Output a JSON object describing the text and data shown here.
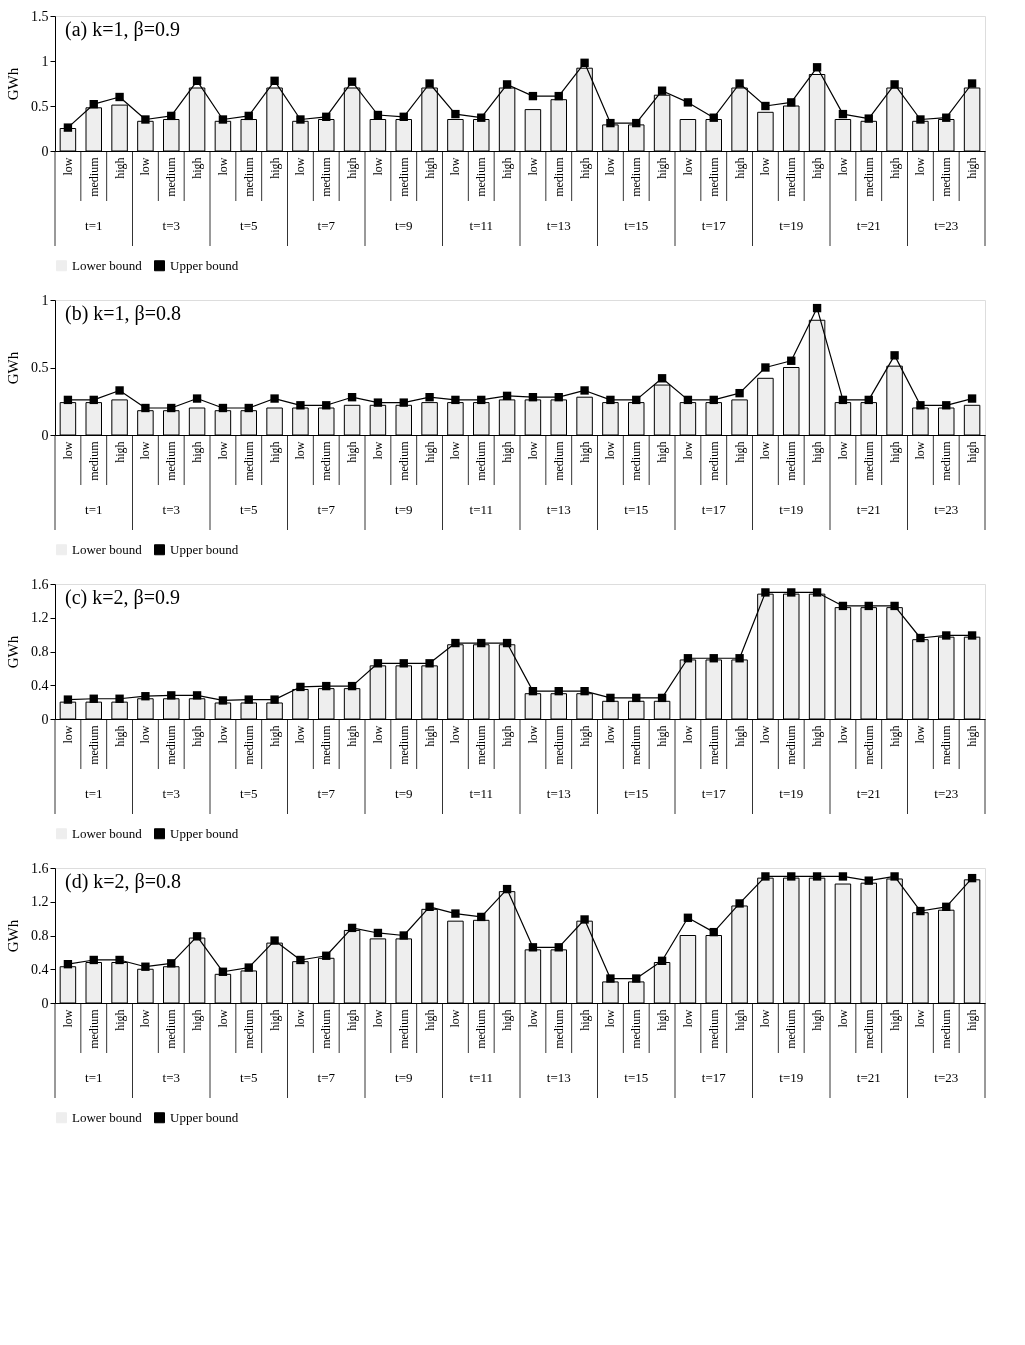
{
  "chart_data": [
    {
      "type": "bar",
      "title": "(a) k=1, β=0.9",
      "ylabel": "GWh",
      "categories": [
        "low",
        "medium",
        "high",
        "low",
        "medium",
        "high",
        "low",
        "medium",
        "high",
        "low",
        "medium",
        "high",
        "low",
        "medium",
        "high",
        "low",
        "medium",
        "high",
        "low",
        "medium",
        "high",
        "low",
        "medium",
        "high",
        "low",
        "medium",
        "high",
        "low",
        "medium",
        "high",
        "low",
        "medium",
        "high",
        "low",
        "medium",
        "high"
      ],
      "annotations": [
        "t=1",
        "t=3",
        "t=5",
        "t=7",
        "t=9",
        "t=11",
        "t=13",
        "t=15",
        "t=17",
        "t=19",
        "t=21",
        "t=23"
      ],
      "series": [
        {
          "name": "Lower bound",
          "type": "bar",
          "color": "#eeeeee",
          "values": [
            0.25,
            0.48,
            0.51,
            0.33,
            0.35,
            0.7,
            0.33,
            0.35,
            0.7,
            0.33,
            0.35,
            0.7,
            0.35,
            0.35,
            0.7,
            0.35,
            0.35,
            0.7,
            0.46,
            0.57,
            0.92,
            0.29,
            0.29,
            0.62,
            0.35,
            0.35,
            0.7,
            0.43,
            0.5,
            0.85,
            0.35,
            0.33,
            0.7,
            0.33,
            0.35,
            0.7
          ]
        },
        {
          "name": "Upper bound",
          "type": "line",
          "color": "#000000",
          "values": [
            0.26,
            0.52,
            0.6,
            0.35,
            0.39,
            0.78,
            0.35,
            0.39,
            0.78,
            0.35,
            0.38,
            0.77,
            0.4,
            0.38,
            0.75,
            0.41,
            0.37,
            0.74,
            0.61,
            0.61,
            0.98,
            0.31,
            0.31,
            0.67,
            0.54,
            0.37,
            0.75,
            0.5,
            0.54,
            0.93,
            0.41,
            0.36,
            0.74,
            0.35,
            0.37,
            0.75
          ]
        }
      ],
      "ylim": [
        0,
        1.5
      ],
      "yticks": [
        0,
        0.5,
        1,
        1.5
      ],
      "legend": "bottom",
      "marker": "square",
      "grid": false
    },
    {
      "type": "bar",
      "title": "(b) k=1, β=0.8",
      "ylabel": "GWh",
      "categories": [
        "low",
        "medium",
        "high",
        "low",
        "medium",
        "high",
        "low",
        "medium",
        "high",
        "low",
        "medium",
        "high",
        "low",
        "medium",
        "high",
        "low",
        "medium",
        "high",
        "low",
        "medium",
        "high",
        "low",
        "medium",
        "high",
        "low",
        "medium",
        "high",
        "low",
        "medium",
        "high",
        "low",
        "medium",
        "high",
        "low",
        "medium",
        "high"
      ],
      "annotations": [
        "t=1",
        "t=3",
        "t=5",
        "t=7",
        "t=9",
        "t=11",
        "t=13",
        "t=15",
        "t=17",
        "t=19",
        "t=21",
        "t=23"
      ],
      "series": [
        {
          "name": "Lower bound",
          "type": "bar",
          "color": "#eeeeee",
          "values": [
            0.24,
            0.24,
            0.26,
            0.18,
            0.18,
            0.2,
            0.18,
            0.18,
            0.2,
            0.2,
            0.2,
            0.22,
            0.22,
            0.22,
            0.24,
            0.24,
            0.24,
            0.26,
            0.26,
            0.26,
            0.28,
            0.24,
            0.24,
            0.37,
            0.24,
            0.24,
            0.26,
            0.42,
            0.5,
            0.85,
            0.24,
            0.24,
            0.51,
            0.2,
            0.2,
            0.22
          ]
        },
        {
          "name": "Upper bound",
          "type": "line",
          "color": "#000000",
          "values": [
            0.26,
            0.26,
            0.33,
            0.2,
            0.2,
            0.27,
            0.2,
            0.2,
            0.27,
            0.22,
            0.22,
            0.28,
            0.24,
            0.24,
            0.28,
            0.26,
            0.26,
            0.29,
            0.28,
            0.28,
            0.33,
            0.26,
            0.26,
            0.42,
            0.26,
            0.26,
            0.31,
            0.5,
            0.55,
            0.94,
            0.26,
            0.26,
            0.59,
            0.22,
            0.22,
            0.27
          ]
        }
      ],
      "ylim": [
        0,
        1
      ],
      "yticks": [
        0,
        0.5,
        1
      ],
      "legend": "bottom",
      "marker": "square",
      "grid": false
    },
    {
      "type": "bar",
      "title": "(c) k=2, β=0.9",
      "ylabel": "GWh",
      "categories": [
        "low",
        "medium",
        "high",
        "low",
        "medium",
        "high",
        "low",
        "medium",
        "high",
        "low",
        "medium",
        "high",
        "low",
        "medium",
        "high",
        "low",
        "medium",
        "high",
        "low",
        "medium",
        "high",
        "low",
        "medium",
        "high",
        "low",
        "medium",
        "high",
        "low",
        "medium",
        "high",
        "low",
        "medium",
        "high",
        "low",
        "medium",
        "high"
      ],
      "annotations": [
        "t=1",
        "t=3",
        "t=5",
        "t=7",
        "t=9",
        "t=11",
        "t=13",
        "t=15",
        "t=17",
        "t=19",
        "t=21",
        "t=23"
      ],
      "series": [
        {
          "name": "Lower bound",
          "type": "bar",
          "color": "#eeeeee",
          "values": [
            0.2,
            0.2,
            0.2,
            0.24,
            0.24,
            0.24,
            0.19,
            0.19,
            0.19,
            0.35,
            0.36,
            0.36,
            0.63,
            0.63,
            0.63,
            0.88,
            0.88,
            0.88,
            0.3,
            0.3,
            0.3,
            0.21,
            0.21,
            0.21,
            0.7,
            0.7,
            0.7,
            1.48,
            1.48,
            1.48,
            1.32,
            1.32,
            1.32,
            0.94,
            0.97,
            0.97
          ]
        },
        {
          "name": "Upper bound",
          "type": "line",
          "color": "#000000",
          "values": [
            0.23,
            0.24,
            0.24,
            0.27,
            0.28,
            0.28,
            0.22,
            0.23,
            0.23,
            0.38,
            0.39,
            0.39,
            0.66,
            0.66,
            0.66,
            0.9,
            0.9,
            0.9,
            0.33,
            0.33,
            0.33,
            0.25,
            0.25,
            0.25,
            0.72,
            0.72,
            0.72,
            1.5,
            1.5,
            1.5,
            1.34,
            1.34,
            1.34,
            0.96,
            0.99,
            0.99
          ]
        }
      ],
      "ylim": [
        0,
        1.6
      ],
      "yticks": [
        0,
        0.4,
        0.8,
        1.2,
        1.6
      ],
      "legend": "bottom",
      "marker": "square",
      "grid": false
    },
    {
      "type": "bar",
      "title": "(d) k=2, β=0.8",
      "ylabel": "GWh",
      "categories": [
        "low",
        "medium",
        "high",
        "low",
        "medium",
        "high",
        "low",
        "medium",
        "high",
        "low",
        "medium",
        "high",
        "low",
        "medium",
        "high",
        "low",
        "medium",
        "high",
        "low",
        "medium",
        "high",
        "low",
        "medium",
        "high",
        "low",
        "medium",
        "high",
        "low",
        "medium",
        "high",
        "low",
        "medium",
        "high",
        "low",
        "medium",
        "high"
      ],
      "annotations": [
        "t=1",
        "t=3",
        "t=5",
        "t=7",
        "t=9",
        "t=11",
        "t=13",
        "t=15",
        "t=17",
        "t=19",
        "t=21",
        "t=23"
      ],
      "series": [
        {
          "name": "Lower bound",
          "type": "bar",
          "color": "#eeeeee",
          "values": [
            0.43,
            0.48,
            0.48,
            0.4,
            0.43,
            0.77,
            0.34,
            0.38,
            0.71,
            0.49,
            0.53,
            0.86,
            0.76,
            0.76,
            1.11,
            0.97,
            0.98,
            1.32,
            0.63,
            0.63,
            0.97,
            0.25,
            0.25,
            0.48,
            0.8,
            0.8,
            1.15,
            1.48,
            1.48,
            1.48,
            1.41,
            1.42,
            1.47,
            1.07,
            1.1,
            1.46
          ]
        },
        {
          "name": "Upper bound",
          "type": "line",
          "color": "#000000",
          "values": [
            0.46,
            0.51,
            0.51,
            0.43,
            0.47,
            0.79,
            0.37,
            0.42,
            0.74,
            0.51,
            0.56,
            0.89,
            0.83,
            0.8,
            1.14,
            1.06,
            1.02,
            1.35,
            0.66,
            0.66,
            0.99,
            0.29,
            0.29,
            0.5,
            1.01,
            0.84,
            1.18,
            1.5,
            1.5,
            1.5,
            1.5,
            1.45,
            1.5,
            1.09,
            1.14,
            1.48
          ]
        }
      ],
      "ylim": [
        0,
        1.6
      ],
      "yticks": [
        0,
        0.4,
        0.8,
        1.2,
        1.6
      ],
      "legend": "bottom",
      "marker": "square",
      "grid": false
    }
  ]
}
